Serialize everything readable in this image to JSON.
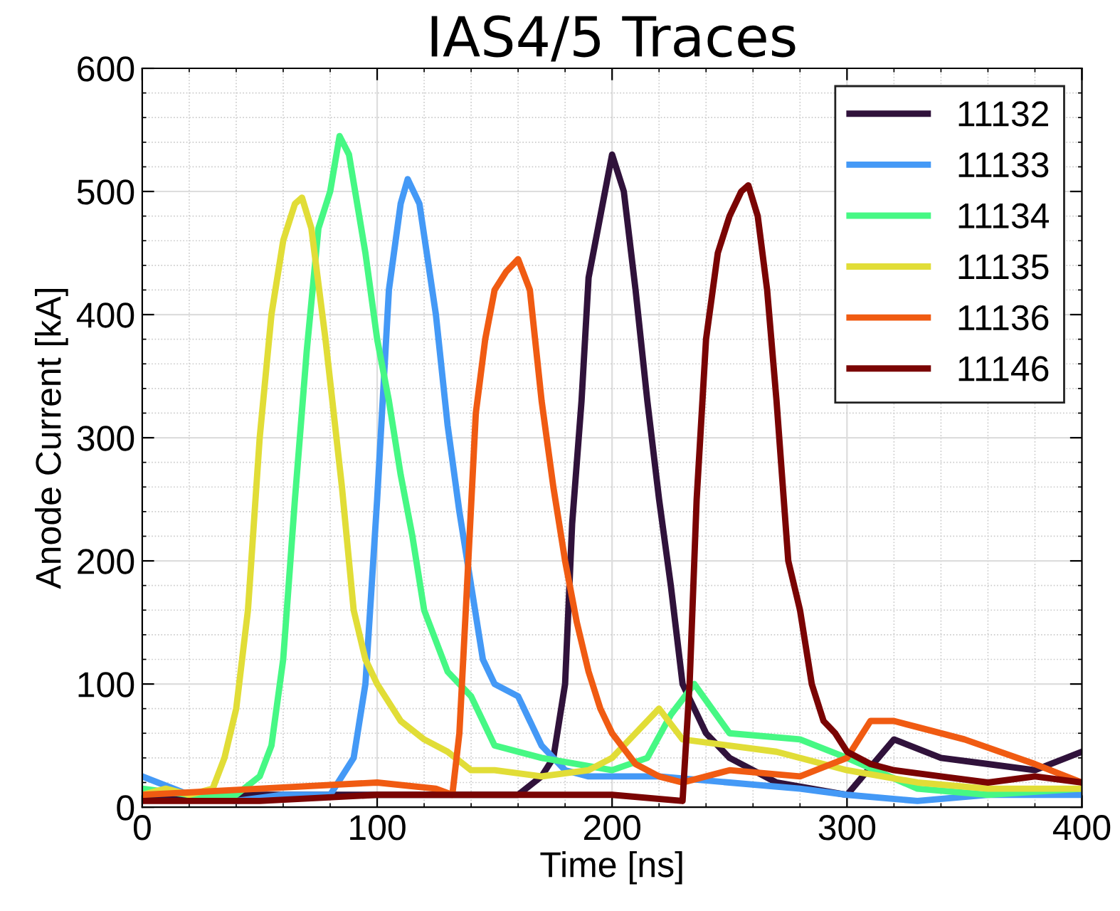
{
  "chart_data": {
    "type": "line",
    "title": "IAS4/5 Traces",
    "xlabel": "Time [ns]",
    "ylabel": "Anode Current [kA]",
    "xlim": [
      0,
      400
    ],
    "xticks": [
      0,
      100,
      200,
      300,
      400
    ],
    "ylim": [
      0,
      600
    ],
    "yticks": [
      0,
      100,
      200,
      300,
      400,
      500,
      600
    ],
    "grid": true,
    "legend": "top right",
    "marker": "none",
    "line_style": "solid",
    "series": [
      {
        "name": "11132",
        "color": "#30123b",
        "x": [
          0,
          40,
          80,
          120,
          160,
          170,
          175,
          180,
          183,
          187,
          190,
          195,
          200,
          205,
          210,
          215,
          220,
          225,
          230,
          235,
          240,
          250,
          270,
          300,
          320,
          340,
          360,
          380,
          400
        ],
        "values": [
          10,
          10,
          10,
          10,
          10,
          25,
          40,
          100,
          230,
          330,
          430,
          480,
          530,
          500,
          420,
          330,
          250,
          180,
          100,
          80,
          60,
          40,
          20,
          10,
          55,
          40,
          35,
          30,
          45
        ]
      },
      {
        "name": "11133",
        "color": "#4499f6",
        "x": [
          0,
          20,
          40,
          60,
          80,
          90,
          95,
          100,
          105,
          110,
          113,
          118,
          125,
          130,
          135,
          140,
          145,
          150,
          160,
          165,
          170,
          175,
          180,
          190,
          200,
          220,
          250,
          280,
          300,
          330,
          360,
          400
        ],
        "values": [
          25,
          10,
          5,
          10,
          10,
          40,
          100,
          250,
          420,
          490,
          510,
          490,
          400,
          310,
          240,
          180,
          120,
          100,
          90,
          70,
          50,
          40,
          30,
          25,
          25,
          25,
          20,
          15,
          10,
          5,
          10,
          10
        ]
      },
      {
        "name": "11134",
        "color": "#46f884",
        "x": [
          0,
          20,
          40,
          50,
          55,
          60,
          65,
          70,
          75,
          80,
          84,
          88,
          95,
          100,
          105,
          110,
          115,
          120,
          130,
          140,
          150,
          170,
          200,
          215,
          225,
          235,
          250,
          280,
          300,
          330,
          360,
          400
        ],
        "values": [
          15,
          10,
          10,
          25,
          50,
          120,
          250,
          370,
          470,
          500,
          545,
          530,
          450,
          380,
          330,
          270,
          220,
          160,
          110,
          90,
          50,
          40,
          30,
          40,
          75,
          100,
          60,
          55,
          40,
          15,
          10,
          15
        ]
      },
      {
        "name": "11135",
        "color": "#e1dd37",
        "x": [
          0,
          10,
          20,
          30,
          35,
          40,
          45,
          50,
          55,
          60,
          65,
          68,
          72,
          78,
          85,
          90,
          95,
          100,
          110,
          120,
          130,
          140,
          150,
          170,
          190,
          200,
          210,
          220,
          230,
          250,
          270,
          300,
          330,
          360,
          400
        ],
        "values": [
          10,
          15,
          10,
          15,
          40,
          80,
          160,
          300,
          400,
          460,
          490,
          495,
          470,
          380,
          260,
          160,
          120,
          100,
          70,
          55,
          45,
          30,
          30,
          25,
          30,
          40,
          60,
          80,
          55,
          50,
          45,
          30,
          20,
          15,
          15
        ]
      },
      {
        "name": "11136",
        "color": "#f05b12",
        "x": [
          0,
          50,
          100,
          125,
          132,
          135,
          138,
          142,
          146,
          150,
          155,
          160,
          165,
          170,
          175,
          180,
          185,
          190,
          195,
          200,
          210,
          220,
          230,
          250,
          280,
          300,
          310,
          320,
          330,
          350,
          380,
          400
        ],
        "values": [
          10,
          15,
          20,
          15,
          10,
          60,
          170,
          320,
          380,
          420,
          435,
          445,
          420,
          330,
          260,
          200,
          150,
          110,
          80,
          60,
          35,
          25,
          20,
          30,
          25,
          40,
          70,
          70,
          65,
          55,
          35,
          20
        ]
      },
      {
        "name": "11146",
        "color": "#7a0403",
        "x": [
          0,
          50,
          100,
          150,
          200,
          230,
          233,
          236,
          240,
          245,
          250,
          255,
          258,
          262,
          266,
          270,
          275,
          280,
          285,
          290,
          295,
          300,
          310,
          320,
          340,
          360,
          380,
          400
        ],
        "values": [
          5,
          5,
          10,
          10,
          10,
          5,
          100,
          250,
          380,
          450,
          480,
          500,
          505,
          480,
          420,
          330,
          200,
          160,
          100,
          70,
          60,
          45,
          35,
          30,
          25,
          20,
          25,
          20
        ]
      }
    ]
  }
}
